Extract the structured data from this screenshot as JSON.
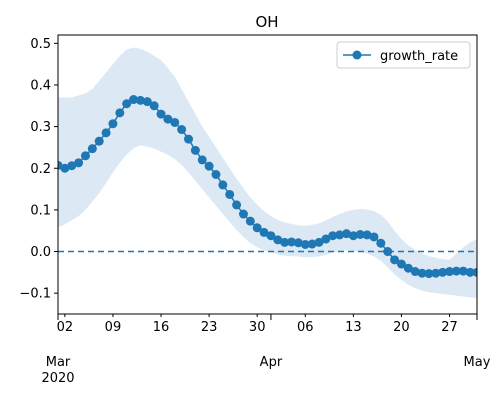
{
  "chart_data": {
    "type": "line",
    "title": "OH",
    "xlabel": "",
    "ylabel": "",
    "x_start": "2020-03-01",
    "ylim": [
      -0.15,
      0.52
    ],
    "yticks": [
      -0.1,
      0.0,
      0.1,
      0.2,
      0.3,
      0.4,
      0.5
    ],
    "ytick_labels": [
      "−0.1",
      "0.0",
      "0.1",
      "0.2",
      "0.3",
      "0.4",
      "0.5"
    ],
    "xticks_minor": [
      {
        "date": "2020-03-02",
        "label": "02"
      },
      {
        "date": "2020-03-09",
        "label": "09"
      },
      {
        "date": "2020-03-16",
        "label": "16"
      },
      {
        "date": "2020-03-23",
        "label": "23"
      },
      {
        "date": "2020-03-30",
        "label": "30"
      },
      {
        "date": "2020-04-06",
        "label": "06"
      },
      {
        "date": "2020-04-13",
        "label": "13"
      },
      {
        "date": "2020-04-20",
        "label": "20"
      },
      {
        "date": "2020-04-27",
        "label": "27"
      }
    ],
    "xticks_major": [
      {
        "date": "2020-03-01",
        "label": "Mar",
        "sublabel": "2020"
      },
      {
        "date": "2020-04-01",
        "label": "Apr",
        "sublabel": ""
      },
      {
        "date": "2020-05-01",
        "label": "May",
        "sublabel": ""
      }
    ],
    "legend": {
      "position": "top-right",
      "entries": [
        "growth_rate"
      ]
    },
    "reference_line": {
      "y": 0.0,
      "style": "dashed"
    },
    "colors": {
      "line": "#1f77b4",
      "band": "#dce9f5"
    },
    "series": [
      {
        "name": "growth_rate",
        "x": [
          "2020-03-01",
          "2020-03-02",
          "2020-03-03",
          "2020-03-04",
          "2020-03-05",
          "2020-03-06",
          "2020-03-07",
          "2020-03-08",
          "2020-03-09",
          "2020-03-10",
          "2020-03-11",
          "2020-03-12",
          "2020-03-13",
          "2020-03-14",
          "2020-03-15",
          "2020-03-16",
          "2020-03-17",
          "2020-03-18",
          "2020-03-19",
          "2020-03-20",
          "2020-03-21",
          "2020-03-22",
          "2020-03-23",
          "2020-03-24",
          "2020-03-25",
          "2020-03-26",
          "2020-03-27",
          "2020-03-28",
          "2020-03-29",
          "2020-03-30",
          "2020-03-31",
          "2020-04-01",
          "2020-04-02",
          "2020-04-03",
          "2020-04-04",
          "2020-04-05",
          "2020-04-06",
          "2020-04-07",
          "2020-04-08",
          "2020-04-09",
          "2020-04-10",
          "2020-04-11",
          "2020-04-12",
          "2020-04-13",
          "2020-04-14",
          "2020-04-15",
          "2020-04-16",
          "2020-04-17",
          "2020-04-18",
          "2020-04-19",
          "2020-04-20",
          "2020-04-21",
          "2020-04-22",
          "2020-04-23",
          "2020-04-24",
          "2020-04-25",
          "2020-04-26",
          "2020-04-27",
          "2020-04-28",
          "2020-04-29",
          "2020-04-30",
          "2020-05-01"
        ],
        "values": [
          0.207,
          0.2,
          0.206,
          0.213,
          0.23,
          0.247,
          0.265,
          0.285,
          0.307,
          0.333,
          0.355,
          0.365,
          0.363,
          0.36,
          0.35,
          0.33,
          0.318,
          0.31,
          0.293,
          0.27,
          0.243,
          0.22,
          0.205,
          0.185,
          0.16,
          0.137,
          0.112,
          0.09,
          0.073,
          0.057,
          0.046,
          0.038,
          0.028,
          0.022,
          0.023,
          0.021,
          0.017,
          0.018,
          0.022,
          0.03,
          0.038,
          0.04,
          0.043,
          0.038,
          0.041,
          0.04,
          0.035,
          0.02,
          0.0,
          -0.02,
          -0.03,
          -0.04,
          -0.048,
          -0.052,
          -0.053,
          -0.052,
          -0.05,
          -0.048,
          -0.047,
          -0.047,
          -0.05,
          -0.05
        ],
        "lower": [
          0.058,
          0.065,
          0.075,
          0.085,
          0.1,
          0.12,
          0.14,
          0.165,
          0.19,
          0.213,
          0.233,
          0.248,
          0.255,
          0.252,
          0.247,
          0.24,
          0.232,
          0.222,
          0.208,
          0.19,
          0.17,
          0.15,
          0.13,
          0.11,
          0.09,
          0.07,
          0.052,
          0.035,
          0.02,
          0.01,
          0.003,
          -0.002,
          -0.007,
          -0.01,
          -0.011,
          -0.012,
          -0.014,
          -0.013,
          -0.012,
          -0.008,
          -0.002,
          0.001,
          0.003,
          0.002,
          0.0,
          -0.005,
          -0.012,
          -0.022,
          -0.038,
          -0.055,
          -0.068,
          -0.08,
          -0.088,
          -0.094,
          -0.098,
          -0.1,
          -0.102,
          -0.104,
          -0.106,
          -0.108,
          -0.11,
          -0.112
        ],
        "upper": [
          0.37,
          0.37,
          0.37,
          0.375,
          0.38,
          0.39,
          0.41,
          0.43,
          0.45,
          0.47,
          0.485,
          0.49,
          0.487,
          0.48,
          0.47,
          0.46,
          0.44,
          0.42,
          0.39,
          0.36,
          0.33,
          0.3,
          0.275,
          0.25,
          0.225,
          0.2,
          0.175,
          0.152,
          0.13,
          0.112,
          0.097,
          0.085,
          0.076,
          0.07,
          0.066,
          0.063,
          0.062,
          0.064,
          0.068,
          0.075,
          0.083,
          0.09,
          0.096,
          0.1,
          0.102,
          0.101,
          0.097,
          0.088,
          0.072,
          0.05,
          0.03,
          0.015,
          0.004,
          -0.005,
          -0.011,
          -0.015,
          -0.018,
          -0.02,
          -0.005,
          0.01,
          0.022,
          0.03
        ]
      }
    ]
  }
}
